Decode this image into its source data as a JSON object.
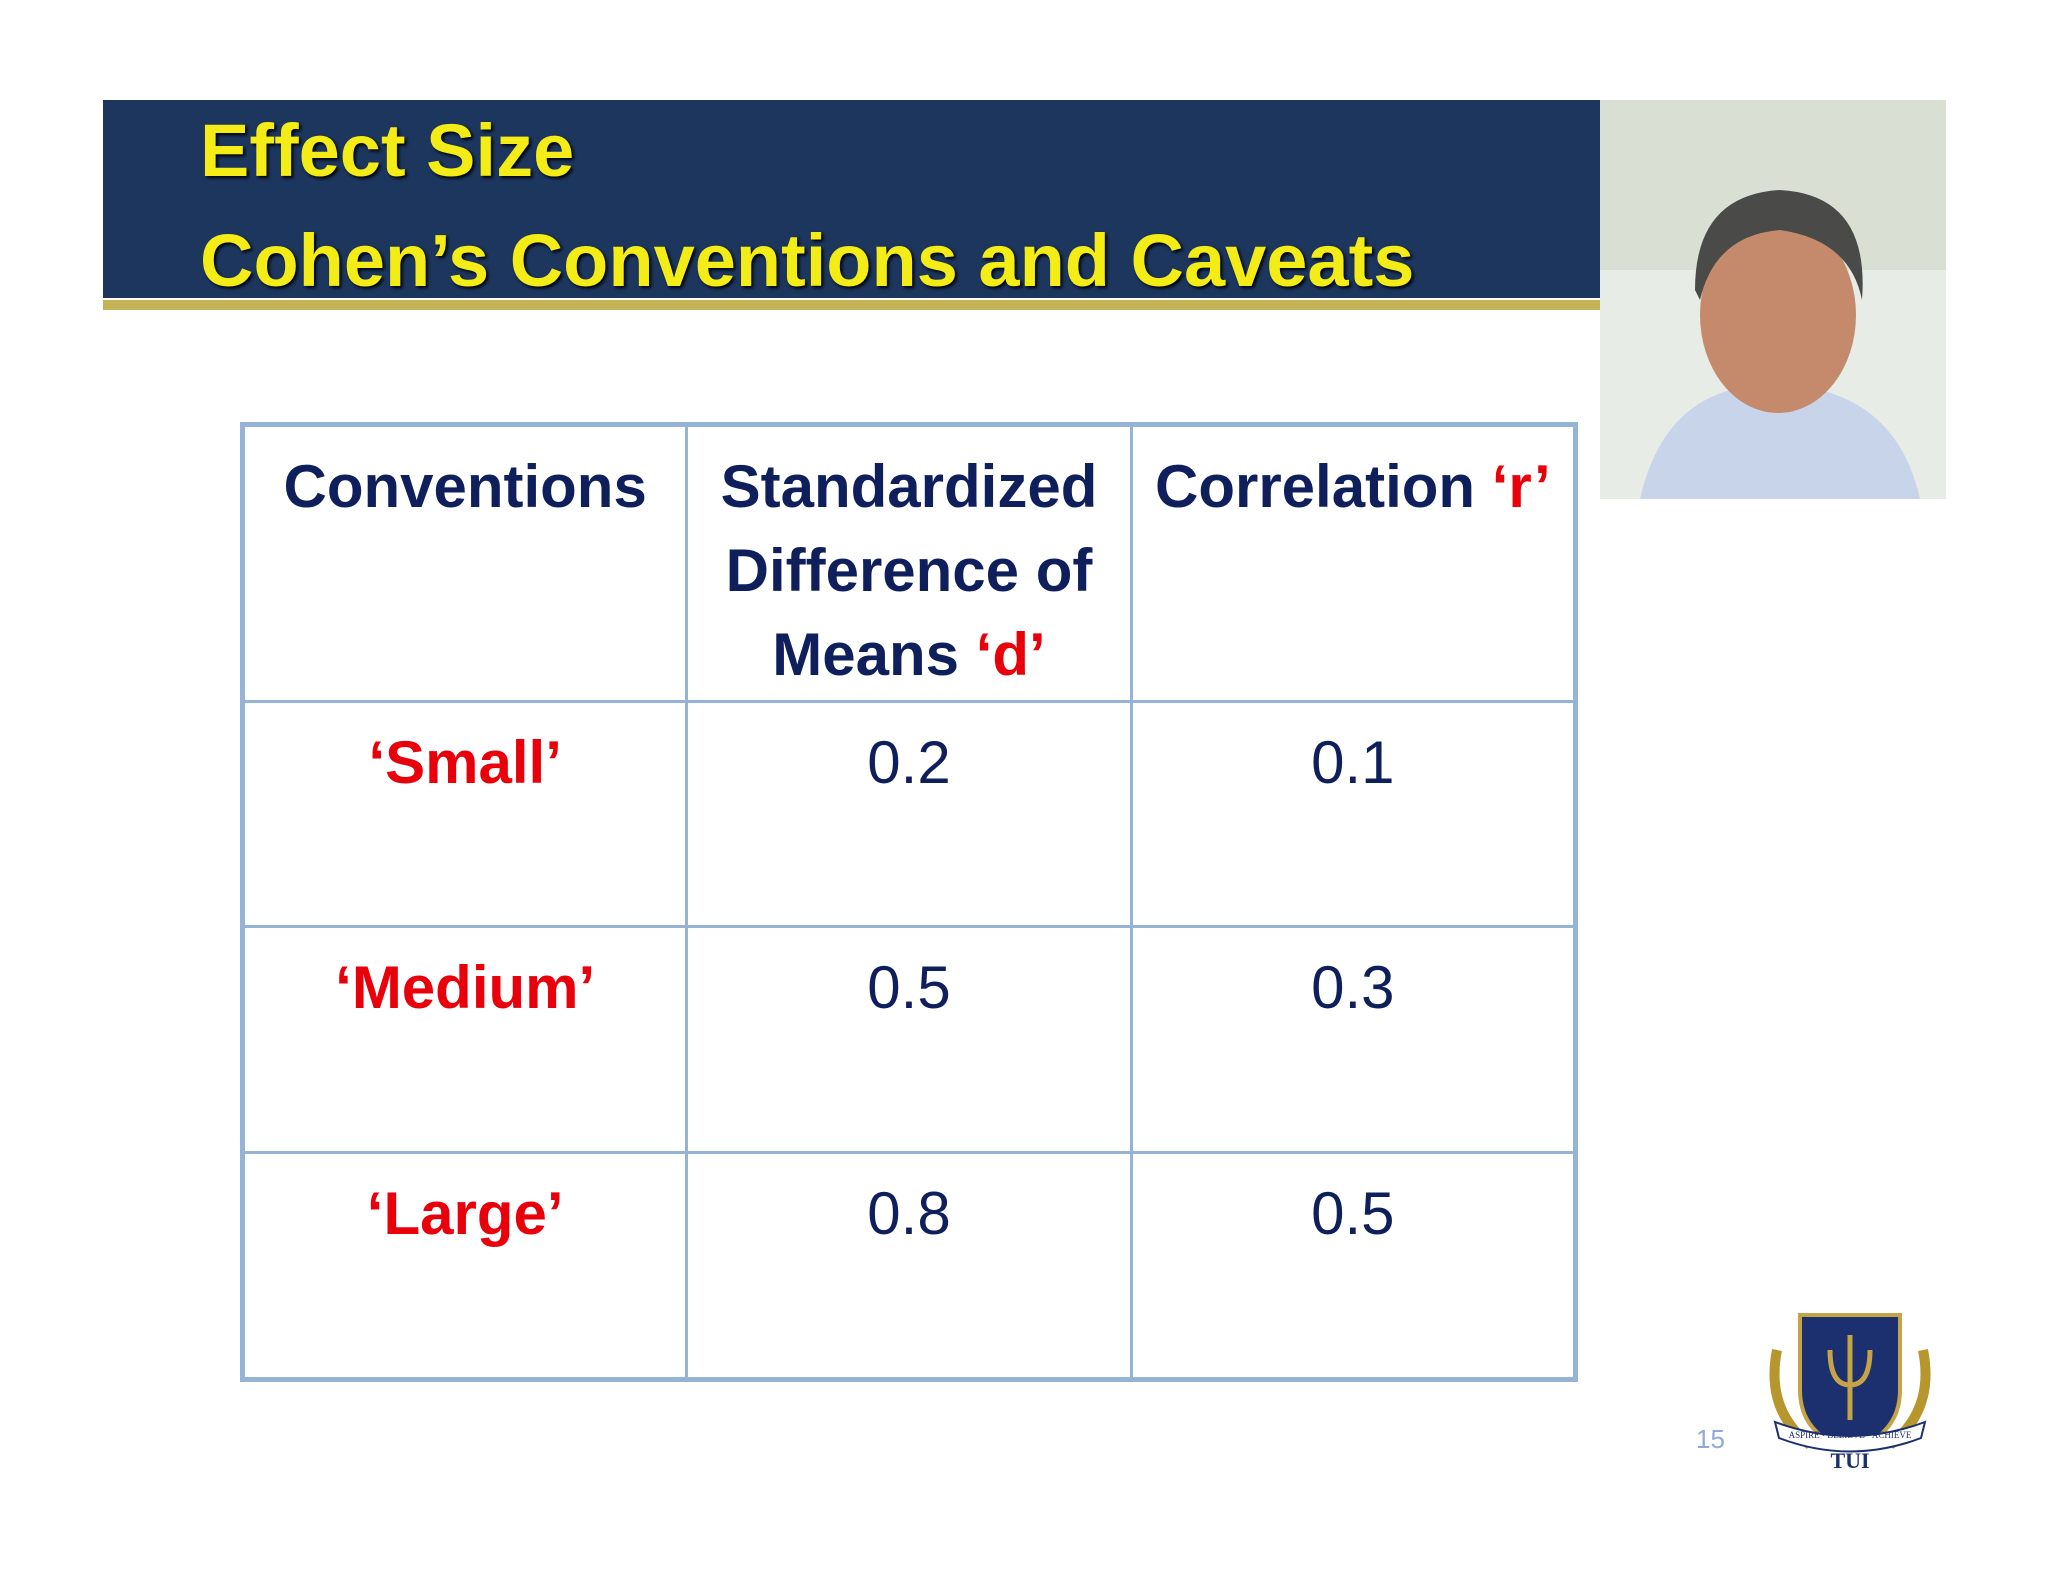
{
  "header": {
    "title_lines": [
      "Effect Size",
      "Cohen’s Conventions and Caveats"
    ]
  },
  "table": {
    "header": [
      {
        "text": "Conventions"
      },
      {
        "text": "Standardized Difference of Means",
        "symbol": "‘d’"
      },
      {
        "text": "Correlation",
        "symbol": "‘r’"
      }
    ],
    "rows": [
      [
        "‘Small’",
        "0.2",
        "0.1"
      ],
      [
        "‘Medium’",
        "0.5",
        "0.3"
      ],
      [
        "‘Large’",
        "0.8",
        "0.5"
      ]
    ]
  },
  "logo": {
    "motto": "ASPIRE • BELIEVE • ACHIEVE",
    "name": "TUI"
  },
  "slide_number": "15"
}
